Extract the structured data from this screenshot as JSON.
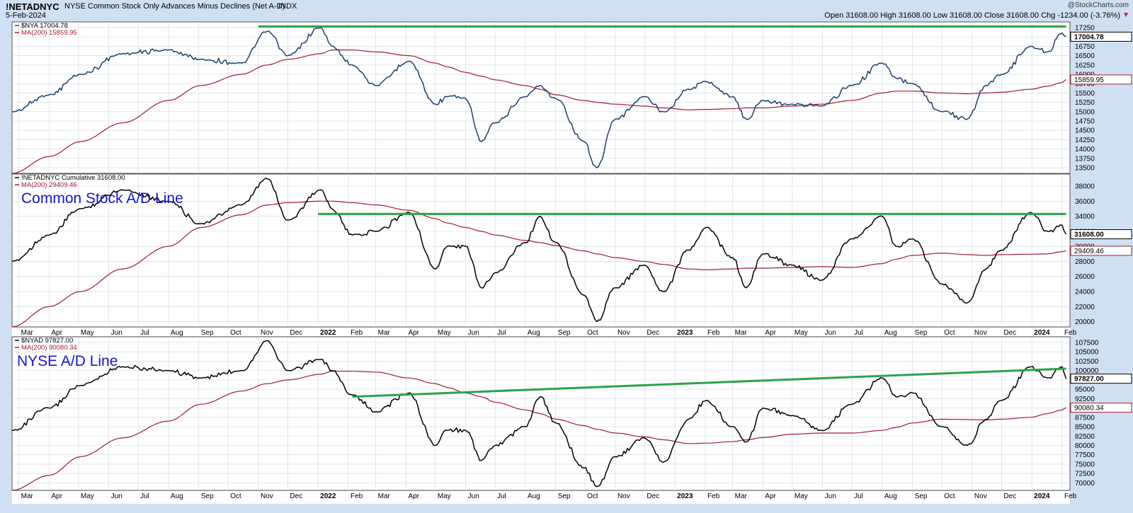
{
  "header": {
    "symbol": "!NETADNYC",
    "description": "NYSE Common Stock Only Advances Minus Declines (Net A-D)",
    "exchange": "INDX",
    "date": "5-Feb-2024",
    "watermark": "@StockCharts.com",
    "ohlc": "Open 31608.00  High 31608.00  Low 31608.00  Close 31608.00  Chg -1234.00 (-3.76%)",
    "chg_arrow": "▼"
  },
  "colors": {
    "price": "#1c3f6e",
    "ma": "#a01c34",
    "line": "#000000",
    "trend": "#2ca34a",
    "annotation": "#1818c8",
    "grid": "#cfd6de",
    "background": "#ffffff",
    "frame": "#cfe0f3"
  },
  "chart_data": [
    {
      "type": "line",
      "legend": [
        {
          "key": "price",
          "text": "$NYA 17004.78"
        },
        {
          "key": "ma",
          "text": "MA(200) 15859.95"
        }
      ],
      "last_label": "17004.78",
      "ma_label": "15859.95",
      "ticks": [
        13500,
        13750,
        14000,
        14250,
        14500,
        14750,
        15000,
        15250,
        15500,
        15750,
        16000,
        16250,
        16500,
        16750,
        17000,
        17250
      ],
      "ylim": [
        13350,
        17400
      ],
      "x": [
        "2021-02-22",
        "2021-04-01",
        "2021-05-03",
        "2021-06-15",
        "2021-08-01",
        "2021-09-03",
        "2021-10-15",
        "2021-11-10",
        "2021-12-01",
        "2022-01-04",
        "2022-01-15",
        "2022-02-05",
        "2022-03-01",
        "2022-04-04",
        "2022-05-01",
        "2022-05-13",
        "2022-06-01",
        "2022-06-17",
        "2022-07-01",
        "2022-08-01",
        "2022-08-16",
        "2022-09-01",
        "2022-09-30",
        "2022-10-13",
        "2022-11-01",
        "2022-12-01",
        "2022-12-20",
        "2023-01-15",
        "2023-02-02",
        "2023-03-01",
        "2023-03-15",
        "2023-04-01",
        "2023-05-01",
        "2023-05-31",
        "2023-07-01",
        "2023-08-01",
        "2023-08-15",
        "2023-09-01",
        "2023-10-01",
        "2023-10-27",
        "2023-11-15",
        "2023-12-01",
        "2023-12-31",
        "2024-01-17",
        "2024-02-01",
        "2024-02-05"
      ],
      "series": [
        {
          "key": "price",
          "values": [
            15000,
            15450,
            16000,
            16550,
            16650,
            16400,
            16300,
            17150,
            16500,
            17250,
            16750,
            16250,
            15700,
            16350,
            15200,
            15400,
            15350,
            14200,
            14700,
            15400,
            15700,
            15350,
            14200,
            13500,
            14800,
            15400,
            15000,
            15600,
            15800,
            15400,
            14800,
            15300,
            15200,
            15150,
            15700,
            16300,
            15900,
            15750,
            15000,
            14800,
            15700,
            16000,
            16750,
            16600,
            17100,
            17004.78
          ]
        },
        {
          "key": "ma",
          "values": [
            13350,
            13800,
            14200,
            14700,
            15300,
            15700,
            16000,
            16250,
            16400,
            16550,
            16650,
            16650,
            16600,
            16500,
            16300,
            16200,
            16050,
            15950,
            15850,
            15700,
            15600,
            15450,
            15300,
            15250,
            15200,
            15150,
            15100,
            15050,
            15060,
            15080,
            15100,
            15100,
            15150,
            15200,
            15300,
            15500,
            15550,
            15550,
            15500,
            15480,
            15500,
            15520,
            15600,
            15680,
            15780,
            15859.95
          ]
        }
      ],
      "trendline": {
        "x": [
          "2021-11-01",
          "2024-02-05"
        ],
        "y": [
          17280,
          17280
        ]
      }
    },
    {
      "type": "line",
      "legend": [
        {
          "key": "line",
          "text": "!NETADNYC Cumulative 31608.00"
        },
        {
          "key": "ma",
          "text": "MA(200) 29409.46"
        }
      ],
      "last_label": "31608.00",
      "ma_label": "29409.46",
      "annotation": "Common Stock A/D Line",
      "ticks": [
        20000,
        22000,
        24000,
        26000,
        28000,
        30000,
        32000,
        34000,
        36000,
        38000
      ],
      "ylim": [
        19300,
        39600
      ],
      "x": [
        "2021-02-22",
        "2021-04-01",
        "2021-05-03",
        "2021-06-15",
        "2021-08-01",
        "2021-09-03",
        "2021-10-15",
        "2021-11-10",
        "2021-12-01",
        "2022-01-04",
        "2022-01-15",
        "2022-02-05",
        "2022-03-01",
        "2022-04-04",
        "2022-05-01",
        "2022-05-13",
        "2022-06-01",
        "2022-06-17",
        "2022-07-01",
        "2022-08-01",
        "2022-08-16",
        "2022-09-01",
        "2022-09-30",
        "2022-10-13",
        "2022-11-01",
        "2022-12-01",
        "2022-12-20",
        "2023-01-15",
        "2023-02-02",
        "2023-03-01",
        "2023-03-15",
        "2023-04-01",
        "2023-05-01",
        "2023-05-31",
        "2023-07-01",
        "2023-08-01",
        "2023-08-15",
        "2023-09-01",
        "2023-10-01",
        "2023-10-27",
        "2023-11-15",
        "2023-12-01",
        "2023-12-31",
        "2024-01-17",
        "2024-02-01",
        "2024-02-05"
      ],
      "series": [
        {
          "key": "line",
          "values": [
            28000,
            31500,
            35000,
            37500,
            36000,
            33000,
            35500,
            39000,
            33500,
            37500,
            35000,
            31500,
            32000,
            34500,
            27000,
            30000,
            30000,
            24500,
            26500,
            30500,
            34000,
            30500,
            23500,
            20000,
            24500,
            27500,
            24000,
            29500,
            32500,
            28500,
            24500,
            29000,
            27500,
            25500,
            31000,
            34000,
            30000,
            31000,
            25000,
            22500,
            27000,
            29500,
            34500,
            32000,
            32800,
            31608
          ]
        },
        {
          "key": "ma",
          "values": [
            19300,
            22000,
            24000,
            27000,
            30000,
            32500,
            34200,
            35500,
            35800,
            36000,
            36000,
            35800,
            35500,
            34800,
            33700,
            33100,
            32500,
            32000,
            31500,
            30800,
            30500,
            30100,
            29400,
            29000,
            28500,
            28000,
            27600,
            27000,
            26900,
            27000,
            27100,
            27100,
            27200,
            27300,
            27200,
            27700,
            28300,
            28800,
            29100,
            28900,
            28800,
            28900,
            28950,
            29000,
            29300,
            29409.46
          ]
        }
      ],
      "trendline": {
        "x": [
          "2022-01-01",
          "2024-02-05"
        ],
        "y": [
          34300,
          34300
        ]
      }
    },
    {
      "type": "line",
      "legend": [
        {
          "key": "line",
          "text": "$NYAD 97827.00"
        },
        {
          "key": "ma",
          "text": "MA(200) 90080.34"
        }
      ],
      "last_label": "97827.00",
      "ma_label": "90080.34",
      "annotation": "NYSE A/D Line",
      "ticks": [
        70000,
        72500,
        75000,
        77500,
        80000,
        82500,
        85000,
        87500,
        90000,
        92500,
        95000,
        97500,
        100000,
        102500,
        105000,
        107500
      ],
      "ylim": [
        68000,
        109000
      ],
      "x": [
        "2021-02-22",
        "2021-04-01",
        "2021-05-03",
        "2021-06-15",
        "2021-08-01",
        "2021-09-03",
        "2021-10-15",
        "2021-11-10",
        "2021-12-01",
        "2022-01-04",
        "2022-01-15",
        "2022-02-05",
        "2022-03-01",
        "2022-04-04",
        "2022-05-01",
        "2022-05-13",
        "2022-06-01",
        "2022-06-17",
        "2022-07-01",
        "2022-08-01",
        "2022-08-16",
        "2022-09-01",
        "2022-09-30",
        "2022-10-13",
        "2022-11-01",
        "2022-12-01",
        "2022-12-20",
        "2023-01-15",
        "2023-02-02",
        "2023-03-01",
        "2023-03-15",
        "2023-04-01",
        "2023-05-01",
        "2023-05-31",
        "2023-07-01",
        "2023-08-01",
        "2023-08-15",
        "2023-09-01",
        "2023-10-01",
        "2023-10-27",
        "2023-11-15",
        "2023-12-01",
        "2023-12-31",
        "2024-01-17",
        "2024-02-01",
        "2024-02-05"
      ],
      "series": [
        {
          "key": "line",
          "values": [
            84000,
            90000,
            96000,
            101000,
            100000,
            98000,
            100000,
            108000,
            100000,
            103000,
            100000,
            93500,
            89000,
            94000,
            80000,
            84000,
            84000,
            76000,
            80000,
            85000,
            93000,
            86000,
            74000,
            69000,
            77000,
            82000,
            75500,
            87000,
            92000,
            85000,
            81000,
            90000,
            88000,
            84000,
            91000,
            98000,
            93000,
            94000,
            85000,
            80000,
            87000,
            92000,
            101000,
            98000,
            101000,
            97827
          ]
        },
        {
          "key": "ma",
          "values": [
            68000,
            72000,
            77000,
            82000,
            86500,
            91000,
            94500,
            96500,
            97500,
            99000,
            99800,
            99800,
            99600,
            98000,
            96500,
            95500,
            94000,
            93000,
            91500,
            89500,
            88500,
            87000,
            85300,
            84300,
            83300,
            82300,
            81500,
            80500,
            80600,
            81000,
            81500,
            82100,
            83000,
            83300,
            83300,
            84000,
            84800,
            86000,
            87000,
            86900,
            86800,
            87000,
            87500,
            88500,
            89500,
            90080.34
          ]
        }
      ],
      "trendline": {
        "x": [
          "2022-02-05",
          "2024-02-05"
        ],
        "y": [
          93000,
          100500
        ]
      }
    }
  ],
  "x_axis": {
    "ticks": [
      {
        "date": "2021-03-01",
        "label": "Mar"
      },
      {
        "date": "2021-04-01",
        "label": "Apr"
      },
      {
        "date": "2021-05-01",
        "label": "May"
      },
      {
        "date": "2021-06-01",
        "label": "Jun"
      },
      {
        "date": "2021-07-01",
        "label": "Jul"
      },
      {
        "date": "2021-08-01",
        "label": "Aug"
      },
      {
        "date": "2021-09-01",
        "label": "Sep"
      },
      {
        "date": "2021-10-01",
        "label": "Oct"
      },
      {
        "date": "2021-11-01",
        "label": "Nov"
      },
      {
        "date": "2021-12-01",
        "label": "Dec"
      },
      {
        "date": "2022-01-01",
        "label": "2022",
        "bold": true
      },
      {
        "date": "2022-02-01",
        "label": "Feb"
      },
      {
        "date": "2022-03-01",
        "label": "Mar"
      },
      {
        "date": "2022-04-01",
        "label": "Apr"
      },
      {
        "date": "2022-05-01",
        "label": "May"
      },
      {
        "date": "2022-06-01",
        "label": "Jun"
      },
      {
        "date": "2022-07-01",
        "label": "Jul"
      },
      {
        "date": "2022-08-01",
        "label": "Aug"
      },
      {
        "date": "2022-09-01",
        "label": "Sep"
      },
      {
        "date": "2022-10-01",
        "label": "Oct"
      },
      {
        "date": "2022-11-01",
        "label": "Nov"
      },
      {
        "date": "2022-12-01",
        "label": "Dec"
      },
      {
        "date": "2023-01-01",
        "label": "2023",
        "bold": true
      },
      {
        "date": "2023-02-01",
        "label": "Feb"
      },
      {
        "date": "2023-03-01",
        "label": "Mar"
      },
      {
        "date": "2023-04-01",
        "label": "Apr"
      },
      {
        "date": "2023-05-01",
        "label": "May"
      },
      {
        "date": "2023-06-01",
        "label": "Jun"
      },
      {
        "date": "2023-07-01",
        "label": "Jul"
      },
      {
        "date": "2023-08-01",
        "label": "Aug"
      },
      {
        "date": "2023-09-01",
        "label": "Sep"
      },
      {
        "date": "2023-10-01",
        "label": "Oct"
      },
      {
        "date": "2023-11-01",
        "label": "Nov"
      },
      {
        "date": "2023-12-01",
        "label": "Dec"
      },
      {
        "date": "2024-01-01",
        "label": "2024",
        "bold": true
      },
      {
        "date": "2024-02-01",
        "label": "Feb"
      }
    ]
  }
}
